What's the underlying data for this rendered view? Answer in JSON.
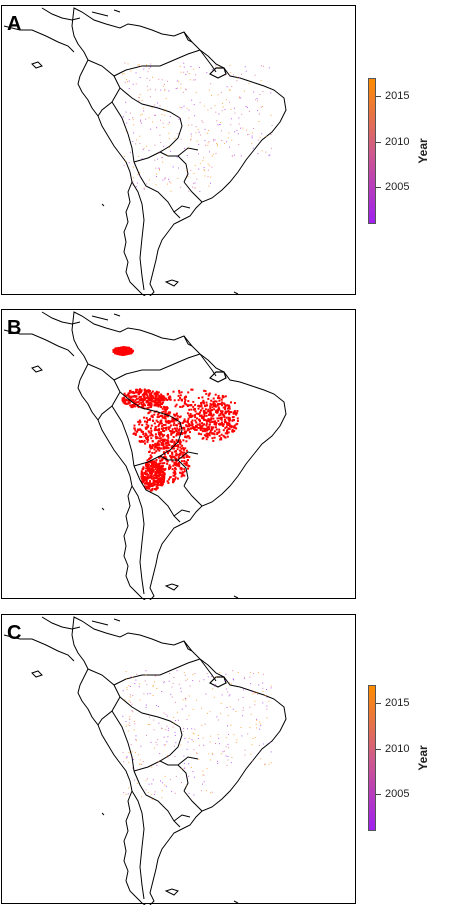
{
  "panels": [
    {
      "label": "A",
      "layer": "year-points"
    },
    {
      "label": "B",
      "layer": "red-fill"
    },
    {
      "label": "C",
      "layer": "year-points"
    }
  ],
  "legend": {
    "title": "Year",
    "ticks": [
      "2015",
      "2010",
      "2005"
    ],
    "range": [
      2001,
      2017
    ],
    "colors": {
      "low": "#a020f0",
      "mid": "#d05a8a",
      "high": "#ff8c00"
    }
  },
  "colors": {
    "coast": "#000000",
    "red_layer": "#ff0000"
  }
}
